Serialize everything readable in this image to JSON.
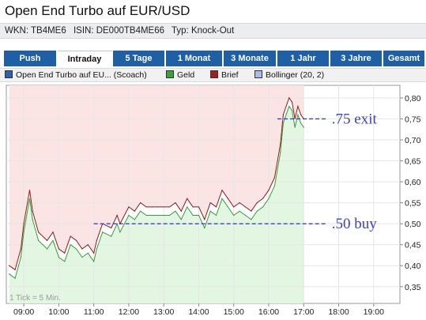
{
  "header": {
    "title": "Open End Turbo auf EUR/USD",
    "wkn": "WKN: TB4ME6",
    "isin": "ISIN: DE000TB4ME66",
    "typ": "Typ: Knock-Out"
  },
  "tabs": [
    {
      "label": "Push",
      "active": false
    },
    {
      "label": "Intraday",
      "active": true
    },
    {
      "label": "5 Tage",
      "active": false
    },
    {
      "label": "1 Monat",
      "active": false
    },
    {
      "label": "3 Monate",
      "active": false
    },
    {
      "label": "1 Jahr",
      "active": false
    },
    {
      "label": "3 Jahre",
      "active": false
    },
    {
      "label": "Gesamt",
      "active": false
    }
  ],
  "legend": [
    {
      "label": "Open End Turbo auf EU... (Scoach)",
      "color": "#2f5fae"
    },
    {
      "label": "Geld",
      "color": "#3ca03c"
    },
    {
      "label": "Brief",
      "color": "#a02020"
    },
    {
      "label": "Bollinger (20, 2)",
      "color": "#a9bde8"
    }
  ],
  "colors": {
    "bid_line": "#3a9a3a",
    "ask_line": "#8b1a1a",
    "area_fill": "#e2f6e2",
    "band_fill": "#fbe4e4",
    "annotation": "#3a3fcf"
  },
  "chart_data": {
    "type": "line",
    "xlabel": "",
    "ylabel": "",
    "x_ticks": [
      "09:00",
      "10:00",
      "11:00",
      "12:00",
      "13:00",
      "14:00",
      "15:00",
      "16:00",
      "17:00",
      "18:00",
      "19:00"
    ],
    "y_ticks": [
      "0,35",
      "0,40",
      "0,45",
      "0,50",
      "0,55",
      "0,60",
      "0,65",
      "0,70",
      "0,75",
      "0,80"
    ],
    "xlim": [
      "08:30",
      "19:45"
    ],
    "ylim": [
      0.31,
      0.83
    ],
    "grid": true,
    "footnote": "1 Tick = 5 Min.",
    "series": [
      {
        "name": "Geld",
        "x": [
          "08:35",
          "08:45",
          "08:55",
          "09:00",
          "09:10",
          "09:15",
          "09:25",
          "09:40",
          "09:50",
          "10:00",
          "10:10",
          "10:20",
          "10:30",
          "10:40",
          "10:50",
          "11:00",
          "11:05",
          "11:15",
          "11:30",
          "11:40",
          "11:45",
          "12:00",
          "12:10",
          "12:20",
          "12:30",
          "12:40",
          "12:50",
          "13:00",
          "13:10",
          "13:20",
          "13:30",
          "13:40",
          "13:50",
          "14:00",
          "14:10",
          "14:20",
          "14:30",
          "14:40",
          "14:50",
          "15:00",
          "15:10",
          "15:20",
          "15:30",
          "15:40",
          "15:50",
          "16:00",
          "16:10",
          "16:20",
          "16:25",
          "16:30",
          "16:35",
          "16:40",
          "16:45",
          "16:50",
          "16:55",
          "17:00"
        ],
        "y": [
          0.38,
          0.37,
          0.42,
          0.48,
          0.56,
          0.51,
          0.46,
          0.44,
          0.46,
          0.42,
          0.41,
          0.45,
          0.44,
          0.42,
          0.43,
          0.41,
          0.44,
          0.48,
          0.47,
          0.5,
          0.48,
          0.52,
          0.51,
          0.53,
          0.52,
          0.52,
          0.52,
          0.52,
          0.52,
          0.53,
          0.51,
          0.54,
          0.52,
          0.52,
          0.49,
          0.53,
          0.52,
          0.56,
          0.54,
          0.52,
          0.53,
          0.52,
          0.51,
          0.53,
          0.54,
          0.56,
          0.59,
          0.67,
          0.74,
          0.76,
          0.78,
          0.77,
          0.73,
          0.76,
          0.74,
          0.73
        ]
      },
      {
        "name": "Brief",
        "x": [
          "08:35",
          "08:45",
          "08:55",
          "09:00",
          "09:10",
          "09:15",
          "09:25",
          "09:40",
          "09:50",
          "10:00",
          "10:10",
          "10:20",
          "10:30",
          "10:40",
          "10:50",
          "11:00",
          "11:05",
          "11:15",
          "11:30",
          "11:40",
          "11:45",
          "12:00",
          "12:10",
          "12:20",
          "12:30",
          "12:40",
          "12:50",
          "13:00",
          "13:10",
          "13:20",
          "13:30",
          "13:40",
          "13:50",
          "14:00",
          "14:10",
          "14:20",
          "14:30",
          "14:40",
          "14:50",
          "15:00",
          "15:10",
          "15:20",
          "15:30",
          "15:40",
          "15:50",
          "16:00",
          "16:10",
          "16:20",
          "16:25",
          "16:30",
          "16:35",
          "16:40",
          "16:45",
          "16:50",
          "16:55",
          "17:00"
        ],
        "y": [
          0.4,
          0.39,
          0.44,
          0.5,
          0.58,
          0.53,
          0.48,
          0.46,
          0.48,
          0.44,
          0.43,
          0.47,
          0.46,
          0.44,
          0.45,
          0.43,
          0.46,
          0.5,
          0.49,
          0.52,
          0.5,
          0.54,
          0.53,
          0.55,
          0.54,
          0.54,
          0.54,
          0.54,
          0.54,
          0.55,
          0.53,
          0.56,
          0.54,
          0.54,
          0.51,
          0.55,
          0.54,
          0.58,
          0.56,
          0.54,
          0.55,
          0.54,
          0.53,
          0.55,
          0.56,
          0.58,
          0.61,
          0.69,
          0.76,
          0.78,
          0.8,
          0.79,
          0.75,
          0.78,
          0.76,
          0.75
        ]
      }
    ],
    "annotations": [
      {
        "label": ".75 exit",
        "y": 0.75,
        "x_from": "16:15",
        "x_to": "17:40"
      },
      {
        "label": ".50 buy",
        "y": 0.5,
        "x_from": "11:00",
        "x_to": "17:40"
      }
    ]
  }
}
